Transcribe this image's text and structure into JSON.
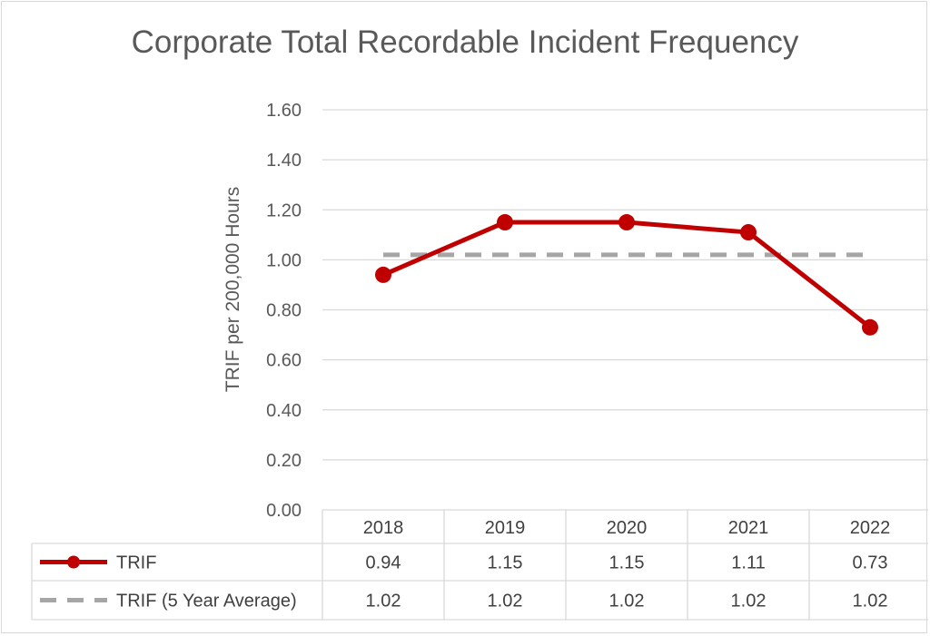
{
  "chart_data": {
    "type": "line",
    "title": "Corporate Total Recordable Incident Frequency",
    "xlabel": "",
    "ylabel": "TRIF per 200,000 Hours",
    "categories": [
      "2018",
      "2019",
      "2020",
      "2021",
      "2022"
    ],
    "ylim": [
      0,
      1.6
    ],
    "yticks": [
      "0.00",
      "0.20",
      "0.40",
      "0.60",
      "0.80",
      "1.00",
      "1.20",
      "1.40",
      "1.60"
    ],
    "grid": true,
    "legend_placement": "data-table-bottom",
    "series": [
      {
        "name": "TRIF",
        "values": [
          0.94,
          1.15,
          1.15,
          1.11,
          0.73
        ],
        "labels": [
          "0.94",
          "1.15",
          "1.15",
          "1.11",
          "0.73"
        ],
        "color": "#c00000",
        "style": "solid-markers"
      },
      {
        "name": "TRIF (5 Year Average)",
        "values": [
          1.02,
          1.02,
          1.02,
          1.02,
          1.02
        ],
        "labels": [
          "1.02",
          "1.02",
          "1.02",
          "1.02",
          "1.02"
        ],
        "color": "#a6a6a6",
        "style": "dashed"
      }
    ]
  }
}
